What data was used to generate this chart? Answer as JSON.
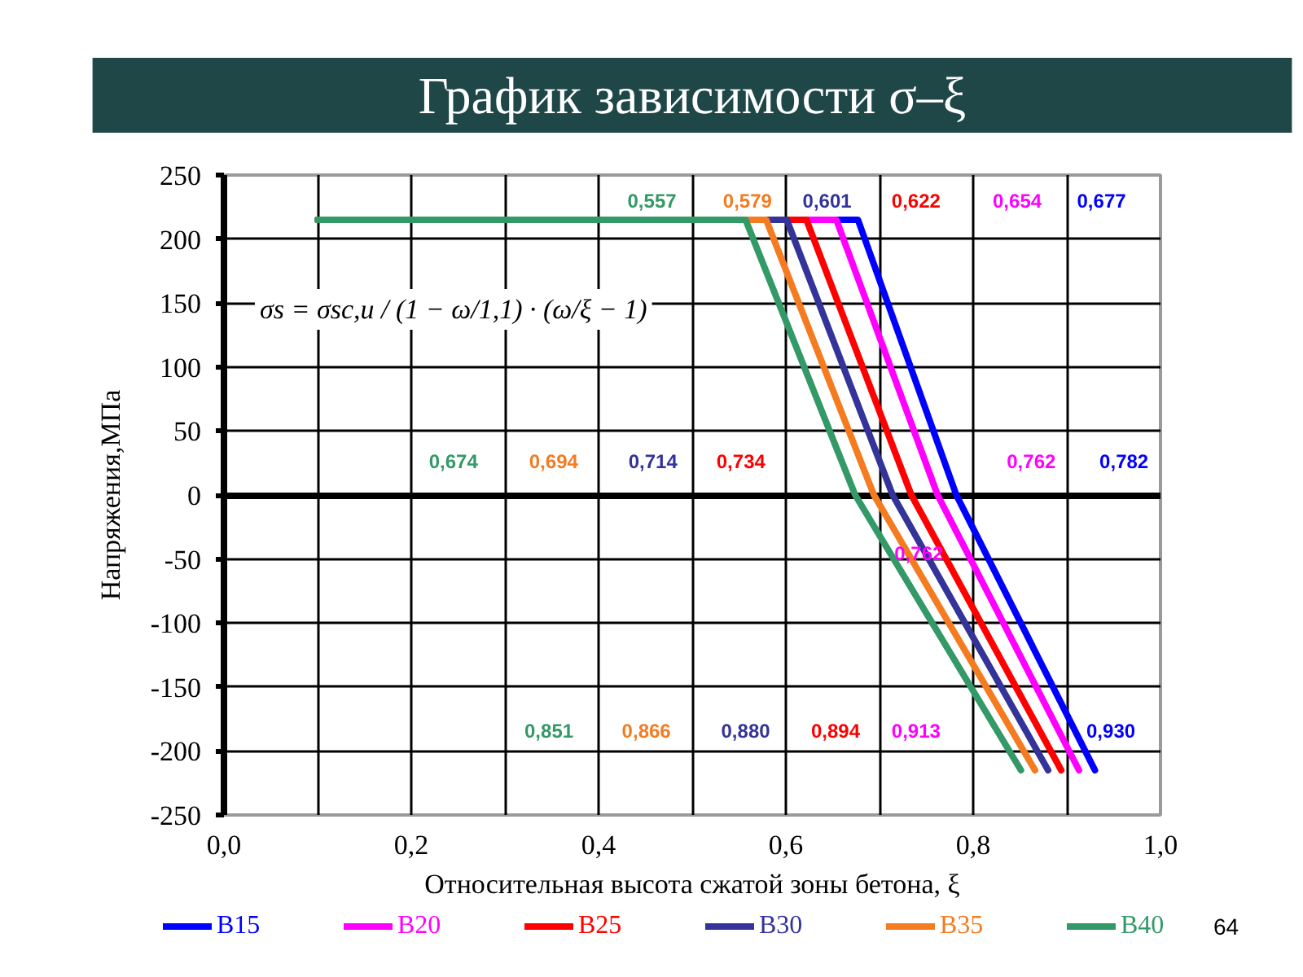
{
  "chart_data": {
    "type": "line",
    "title": "График зависимости σ–ξ",
    "xlabel": "Относительная высота сжатой зоны бетона, ξ",
    "ylabel": "Напряжения,МПа",
    "xlim": [
      0,
      1
    ],
    "ylim": [
      -250,
      250
    ],
    "xticks": [
      {
        "value": 0,
        "label": "0,0"
      },
      {
        "value": 0.1,
        "label": null
      },
      {
        "value": 0.2,
        "label": "0,2"
      },
      {
        "value": 0.3,
        "label": null
      },
      {
        "value": 0.4,
        "label": "0,4"
      },
      {
        "value": 0.5,
        "label": null
      },
      {
        "value": 0.6,
        "label": "0,6"
      },
      {
        "value": 0.7,
        "label": null
      },
      {
        "value": 0.8,
        "label": "0,8"
      },
      {
        "value": 0.9,
        "label": null
      },
      {
        "value": 1,
        "label": "1,0"
      }
    ],
    "yticks": [
      -250,
      -200,
      -150,
      -100,
      -50,
      0,
      50,
      100,
      150,
      200,
      250
    ],
    "grid": true,
    "legend": "bottom",
    "series": [
      {
        "name": "B15",
        "color": "#0000ff",
        "x": [
          0.1,
          0.677,
          0.782,
          0.93
        ],
        "values": [
          215,
          215,
          0,
          -215
        ]
      },
      {
        "name": "B20",
        "color": "#ff00ff",
        "x": [
          0.1,
          0.654,
          0.762,
          0.913
        ],
        "values": [
          215,
          215,
          0,
          -215
        ]
      },
      {
        "name": "B25",
        "color": "#ff0000",
        "x": [
          0.1,
          0.622,
          0.734,
          0.894
        ],
        "values": [
          215,
          215,
          0,
          -215
        ]
      },
      {
        "name": "B30",
        "color": "#333399",
        "x": [
          0.1,
          0.601,
          0.714,
          0.88
        ],
        "values": [
          215,
          215,
          0,
          -215
        ]
      },
      {
        "name": "B35",
        "color": "#f47b20",
        "x": [
          0.1,
          0.579,
          0.694,
          0.866
        ],
        "values": [
          215,
          215,
          0,
          -215
        ]
      },
      {
        "name": "B40",
        "color": "#339966",
        "x": [
          0.1,
          0.557,
          0.674,
          0.851
        ],
        "values": [
          215,
          215,
          0,
          -215
        ]
      }
    ],
    "annotations": [
      "0,557",
      "0,579",
      "0,601",
      "0,622",
      "0,654",
      "0,677",
      "0,674",
      "0,694",
      "0,714",
      "0,734",
      "0,762",
      "0,782",
      "0,851",
      "0,866",
      "0,880",
      "0,894",
      "0,913",
      "0,930",
      "0,762",
      "σs = σsc,u / (1 − ω/1,1) · (ω/ξ − 1)",
      "64"
    ]
  }
}
